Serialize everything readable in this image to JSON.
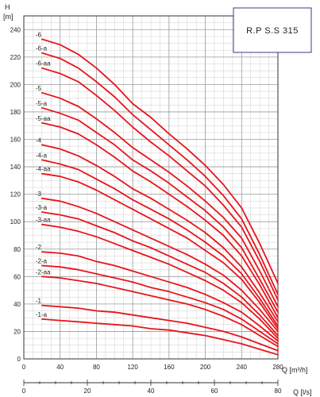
{
  "chart_data": {
    "type": "line",
    "title": "R.P S.S 315",
    "ylabel": "H",
    "yunit": "[m]",
    "xlabel": "Q [m³/h]",
    "x2label": "Q [l/s]",
    "xlim": [
      0,
      280
    ],
    "ylim": [
      0,
      250
    ],
    "x2lim": [
      0,
      80
    ],
    "grid": true,
    "xticks": [
      0,
      40,
      80,
      120,
      160,
      200,
      240,
      280
    ],
    "x2ticks": [
      0,
      20,
      40,
      60,
      80
    ],
    "yticks": [
      0,
      20,
      40,
      60,
      80,
      100,
      120,
      140,
      160,
      180,
      200,
      220,
      240
    ],
    "curve_color": "#e8141c",
    "x": [
      20,
      40,
      60,
      80,
      100,
      120,
      140,
      160,
      180,
      200,
      220,
      240,
      260,
      280
    ],
    "series": [
      {
        "name": "-6",
        "values": [
          233,
          229,
          222,
          212,
          200,
          186,
          176,
          164,
          153,
          141,
          127,
          110,
          84,
          55
        ]
      },
      {
        "name": "-6-a",
        "values": [
          223,
          219,
          212,
          202,
          191,
          178,
          167,
          156,
          145,
          133,
          119,
          102,
          76,
          47
        ]
      },
      {
        "name": "-6-aa",
        "values": [
          212,
          208,
          202,
          192,
          181,
          169,
          158,
          148,
          137,
          126,
          112,
          96,
          71,
          43
        ]
      },
      {
        "name": "-5",
        "values": [
          194,
          190,
          184,
          175,
          165,
          154,
          145,
          136,
          126,
          115,
          103,
          88,
          64,
          38
        ]
      },
      {
        "name": "-5-a",
        "values": [
          183,
          179,
          174,
          165,
          156,
          145,
          137,
          128,
          118,
          108,
          96,
          81,
          58,
          34
        ]
      },
      {
        "name": "-5-aa",
        "values": [
          172,
          169,
          164,
          156,
          147,
          137,
          129,
          120,
          111,
          101,
          90,
          75,
          54,
          30
        ]
      },
      {
        "name": "-4",
        "values": [
          156,
          153,
          148,
          141,
          133,
          124,
          117,
          109,
          101,
          92,
          81,
          67,
          48,
          27
        ]
      },
      {
        "name": "-4-a",
        "values": [
          145,
          142,
          138,
          131,
          124,
          116,
          109,
          102,
          94,
          85,
          75,
          62,
          44,
          24
        ]
      },
      {
        "name": "-4-aa",
        "values": [
          135,
          133,
          129,
          123,
          116,
          109,
          102,
          95,
          88,
          79,
          70,
          58,
          41,
          22
        ]
      },
      {
        "name": "-3",
        "values": [
          117,
          115,
          111,
          106,
          100,
          94,
          88,
          82,
          76,
          69,
          61,
          50,
          36,
          20
        ]
      },
      {
        "name": "-3-a",
        "values": [
          107,
          105,
          102,
          97,
          92,
          86,
          81,
          75,
          69,
          63,
          55,
          45,
          32,
          17
        ]
      },
      {
        "name": "-3-aa",
        "values": [
          98,
          96,
          93,
          89,
          84,
          79,
          74,
          69,
          63,
          57,
          50,
          41,
          29,
          15
        ]
      },
      {
        "name": "-2",
        "values": [
          78,
          77,
          75,
          71,
          68,
          64,
          60,
          56,
          52,
          47,
          41,
          34,
          24,
          13
        ]
      },
      {
        "name": "-2-a",
        "values": [
          68,
          67,
          65,
          62,
          59,
          56,
          52,
          49,
          45,
          41,
          36,
          29,
          20,
          11
        ]
      },
      {
        "name": "-2-aa",
        "values": [
          60,
          59,
          57,
          55,
          52,
          49,
          46,
          43,
          40,
          36,
          31,
          25,
          17,
          9
        ]
      },
      {
        "name": "-1",
        "values": [
          39,
          38,
          37,
          35,
          34,
          32,
          30,
          28,
          26,
          23,
          20,
          16,
          11,
          6
        ]
      },
      {
        "name": "-1-a",
        "values": [
          29,
          28,
          27,
          26,
          25,
          24,
          22,
          21,
          19,
          17,
          14,
          11,
          7,
          3
        ]
      }
    ],
    "curve_labels": [
      "-6",
      "-6-a",
      "-6-aa",
      "-5",
      "-5-a",
      "-5-aa",
      "-4",
      "-4-a",
      "-4-aa",
      "-3",
      "-3-a",
      "-3-aa",
      "-2",
      "-2-a",
      "-2-aa",
      "-1",
      "-1-a"
    ]
  }
}
